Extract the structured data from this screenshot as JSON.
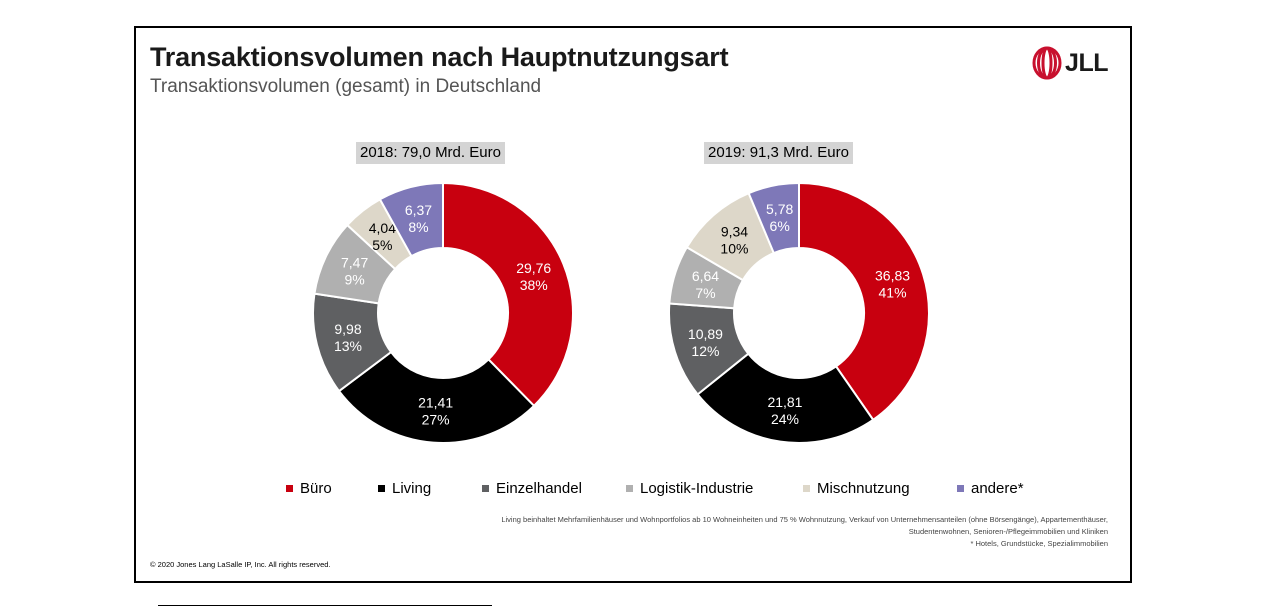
{
  "header": {
    "title": "Transaktionsvolumen nach Hauptnutzungsart",
    "subtitle": "Transaktionsvolumen (gesamt) in Deutschland"
  },
  "logo": {
    "text": "JLL",
    "color": "#c8102e"
  },
  "chart_data": [
    {
      "type": "pie",
      "donut": true,
      "title": "2018: 79,0 Mrd. Euro",
      "categories": [
        "Büro",
        "Living",
        "Einzelhandel",
        "Logistik-Industrie",
        "Mischnutzung",
        "andere*"
      ],
      "values": [
        29.76,
        21.41,
        9.98,
        7.47,
        4.04,
        6.37
      ],
      "value_labels": [
        "29,76",
        "21,41",
        "9,98",
        "7,47",
        "4,04",
        "6,37"
      ],
      "percent_labels": [
        "38%",
        "27%",
        "13%",
        "9%",
        "5%",
        "8%"
      ]
    },
    {
      "type": "pie",
      "donut": true,
      "title": "2019: 91,3 Mrd. Euro",
      "categories": [
        "Büro",
        "Living",
        "Einzelhandel",
        "Logistik-Industrie",
        "Mischnutzung",
        "andere*"
      ],
      "values": [
        36.83,
        21.81,
        10.89,
        6.64,
        9.34,
        5.78
      ],
      "value_labels": [
        "36,83",
        "21,81",
        "10,89",
        "6,64",
        "9,34",
        "5,78"
      ],
      "percent_labels": [
        "41%",
        "24%",
        "12%",
        "7%",
        "10%",
        "6%"
      ]
    }
  ],
  "legend": {
    "placement": "bottom",
    "items": [
      {
        "label": "Büro",
        "color": "#c8000f"
      },
      {
        "label": "Living",
        "color": "#000000"
      },
      {
        "label": "Einzelhandel",
        "color": "#5f6062"
      },
      {
        "label": "Logistik-Industrie",
        "color": "#b0b0b0"
      },
      {
        "label": "Mischnutzung",
        "color": "#ddd7c9"
      },
      {
        "label": "andere*",
        "color": "#7e78b8"
      }
    ]
  },
  "label_colors": [
    "#ffffff",
    "#ffffff",
    "#ffffff",
    "#ffffff",
    "#000000",
    "#ffffff"
  ],
  "notes": {
    "line1": "Living beinhaltet Mehrfamilienhäuser und Wohnportfolios ab 10 Wohneinheiten und 75 % Wohnnutzung, Verkauf von Unternehmensanteilen (ohne Börsengänge), Appartementhäuser,",
    "line2": "Studentenwohnen, Senioren-/Pflegeimmobilien und Kliniken",
    "line3": "* Hotels, Grundstücke, Spezialimmobilien"
  },
  "footer": {
    "copyright": "© 2020 Jones Lang LaSalle IP, Inc. All rights reserved."
  }
}
